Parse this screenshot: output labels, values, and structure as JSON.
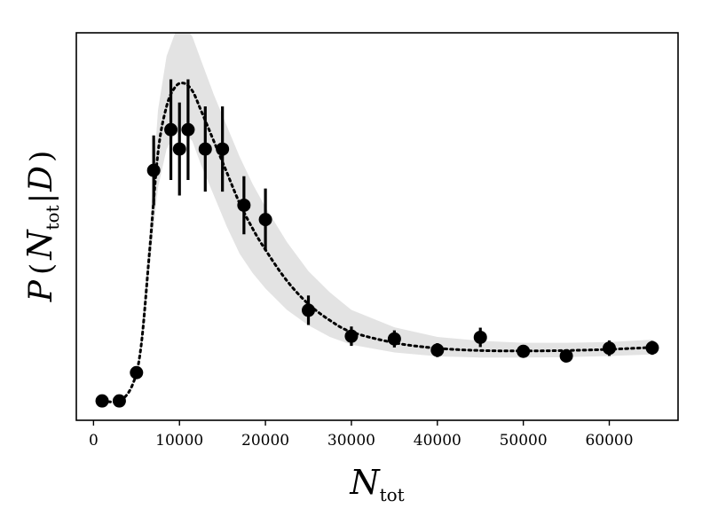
{
  "chart_data": {
    "type": "scatter",
    "xlabel": {
      "main": "N",
      "sub": "tot"
    },
    "ylabel": {
      "script": "P",
      "open": "(",
      "var": "N",
      "sub": "tot",
      "bar": "|",
      "cond": "D",
      "close": ")"
    },
    "xlim": [
      -2000,
      68000
    ],
    "ylim": [
      0,
      1.0
    ],
    "xticks": [
      0,
      10000,
      20000,
      30000,
      40000,
      50000,
      60000
    ],
    "yticks": [],
    "grid": false,
    "legend": "none",
    "colors": {
      "points": "#000000",
      "band": "#e3e3e3",
      "curve": "#000000"
    },
    "points": [
      {
        "x": 1000,
        "y": 0.05,
        "err": 0.0
      },
      {
        "x": 3000,
        "y": 0.05,
        "err": 0.0
      },
      {
        "x": 5000,
        "y": 0.123,
        "err": 0.01
      },
      {
        "x": 7000,
        "y": 0.645,
        "err": 0.09
      },
      {
        "x": 9000,
        "y": 0.75,
        "err": 0.13
      },
      {
        "x": 10000,
        "y": 0.7,
        "err": 0.12
      },
      {
        "x": 11000,
        "y": 0.75,
        "err": 0.13
      },
      {
        "x": 13000,
        "y": 0.7,
        "err": 0.11
      },
      {
        "x": 15000,
        "y": 0.7,
        "err": 0.11
      },
      {
        "x": 17500,
        "y": 0.555,
        "err": 0.075
      },
      {
        "x": 20000,
        "y": 0.518,
        "err": 0.08
      },
      {
        "x": 25000,
        "y": 0.284,
        "err": 0.038
      },
      {
        "x": 30000,
        "y": 0.217,
        "err": 0.025
      },
      {
        "x": 35000,
        "y": 0.21,
        "err": 0.022
      },
      {
        "x": 40000,
        "y": 0.181,
        "err": 0.018
      },
      {
        "x": 45000,
        "y": 0.214,
        "err": 0.025
      },
      {
        "x": 50000,
        "y": 0.178,
        "err": 0.016
      },
      {
        "x": 55000,
        "y": 0.166,
        "err": 0.016
      },
      {
        "x": 60000,
        "y": 0.186,
        "err": 0.02
      },
      {
        "x": 65000,
        "y": 0.187,
        "err": 0.018
      }
    ],
    "model_curve": {
      "x": [
        1000,
        3000,
        4500,
        5500,
        6500,
        7500,
        8500,
        9500,
        10500,
        11500,
        12500,
        14000,
        15500,
        17000,
        18500,
        20000,
        22500,
        25000,
        27500,
        30000,
        35000,
        40000,
        45000,
        50000,
        55000,
        60000,
        65000
      ],
      "y": [
        0.05,
        0.05,
        0.09,
        0.185,
        0.43,
        0.69,
        0.81,
        0.86,
        0.87,
        0.85,
        0.8,
        0.72,
        0.64,
        0.56,
        0.495,
        0.44,
        0.36,
        0.3,
        0.258,
        0.228,
        0.2,
        0.186,
        0.18,
        0.179,
        0.18,
        0.183,
        0.188
      ]
    },
    "band": {
      "x": [
        5500,
        6500,
        7500,
        8500,
        9500,
        10500,
        11500,
        12500,
        14000,
        15500,
        17000,
        18500,
        20000,
        22500,
        25000,
        27500,
        30000,
        35000,
        40000,
        45000,
        50000,
        55000,
        60000,
        65000
      ],
      "lower": [
        0.17,
        0.39,
        0.6,
        0.7,
        0.74,
        0.75,
        0.72,
        0.66,
        0.58,
        0.5,
        0.43,
        0.38,
        0.34,
        0.285,
        0.245,
        0.215,
        0.195,
        0.175,
        0.165,
        0.162,
        0.162,
        0.163,
        0.166,
        0.17
      ],
      "upper": [
        0.21,
        0.48,
        0.8,
        0.94,
        1.0,
        1.02,
        0.99,
        0.93,
        0.84,
        0.76,
        0.68,
        0.61,
        0.55,
        0.46,
        0.385,
        0.33,
        0.285,
        0.24,
        0.215,
        0.205,
        0.2,
        0.2,
        0.202,
        0.208
      ]
    }
  }
}
